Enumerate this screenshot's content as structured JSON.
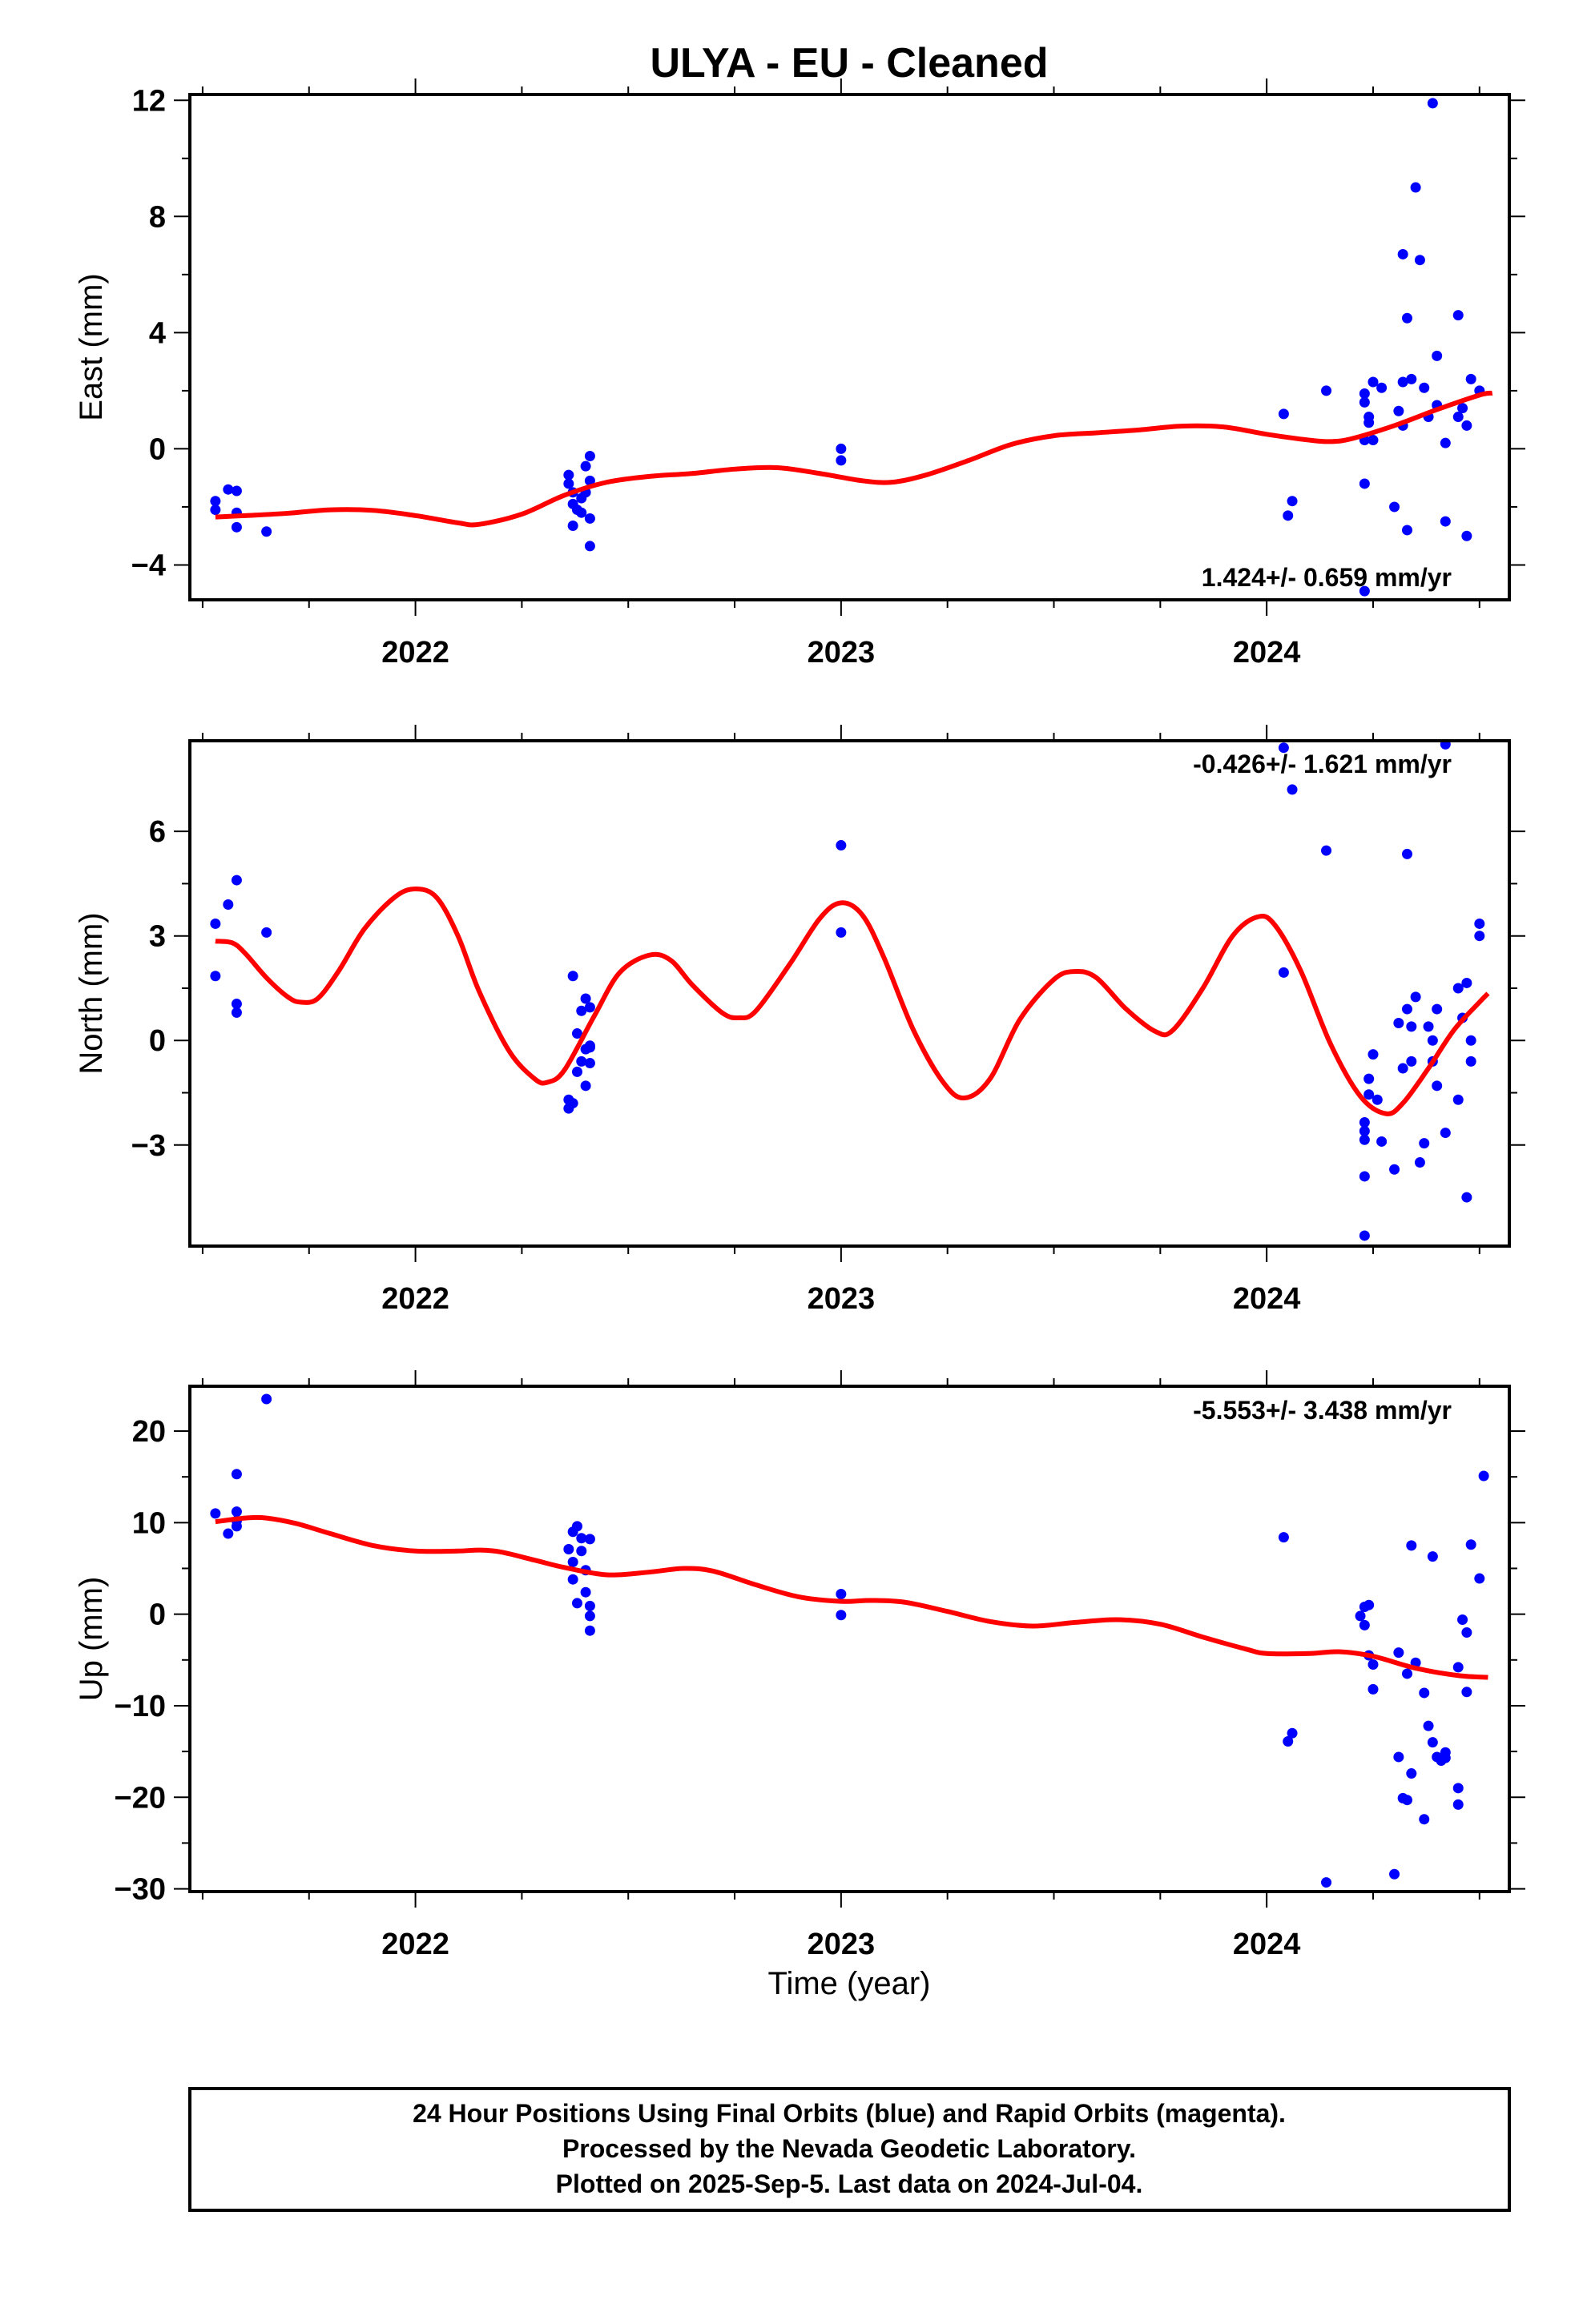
{
  "title": "ULYA  - EU - Cleaned",
  "xlabel": "Time (year)",
  "footer": [
    "24 Hour Positions Using Final Orbits (blue) and Rapid Orbits (magenta).",
    "Processed by the Nevada Geodetic Laboratory.",
    "Plotted on 2025-Sep-5. Last data on 2024-Jul-04."
  ],
  "colors": {
    "points": "#0000ff",
    "fit": "#ff0000",
    "frame": "#000000"
  },
  "chart_data": [
    {
      "type": "scatter",
      "id": "east",
      "ylabel": "East (mm)",
      "rate": "1.424+/- 0.659 mm/yr",
      "xlim": [
        2021.47,
        2024.57
      ],
      "ylim": [
        -5.2,
        12.2
      ],
      "yticks": [
        -4,
        0,
        4,
        8,
        12
      ],
      "yticklabels": [
        "−4",
        "0",
        "4",
        "8",
        "12"
      ],
      "xticks": [
        2022,
        2023,
        2024
      ],
      "xticklabels": [
        "2022",
        "2023",
        "2024"
      ],
      "points": [
        [
          2021.53,
          -1.8
        ],
        [
          2021.53,
          -2.1
        ],
        [
          2021.56,
          -1.4
        ],
        [
          2021.58,
          -1.45
        ],
        [
          2021.58,
          -2.2
        ],
        [
          2021.58,
          -2.7
        ],
        [
          2021.65,
          -2.85
        ],
        [
          2022.36,
          -0.9
        ],
        [
          2022.36,
          -1.2
        ],
        [
          2022.37,
          -1.5
        ],
        [
          2022.37,
          -1.9
        ],
        [
          2022.38,
          -2.1
        ],
        [
          2022.37,
          -2.65
        ],
        [
          2022.39,
          -1.7
        ],
        [
          2022.39,
          -2.2
        ],
        [
          2022.4,
          -0.6
        ],
        [
          2022.41,
          -0.25
        ],
        [
          2022.4,
          -1.5
        ],
        [
          2022.41,
          -1.1
        ],
        [
          2022.41,
          -2.4
        ],
        [
          2022.41,
          -3.35
        ],
        [
          2023.0,
          0.0
        ],
        [
          2023.0,
          -0.4
        ],
        [
          2024.04,
          1.2
        ],
        [
          2024.05,
          -2.3
        ],
        [
          2024.06,
          -1.8
        ],
        [
          2024.14,
          2.0
        ],
        [
          2024.23,
          1.9
        ],
        [
          2024.23,
          1.6
        ],
        [
          2024.23,
          0.3
        ],
        [
          2024.23,
          -1.2
        ],
        [
          2024.23,
          -4.9
        ],
        [
          2024.24,
          1.1
        ],
        [
          2024.24,
          0.9
        ],
        [
          2024.25,
          2.3
        ],
        [
          2024.25,
          0.3
        ],
        [
          2024.27,
          2.1
        ],
        [
          2024.3,
          -2.0
        ],
        [
          2024.31,
          1.3
        ],
        [
          2024.32,
          6.7
        ],
        [
          2024.32,
          2.3
        ],
        [
          2024.32,
          0.8
        ],
        [
          2024.33,
          -2.8
        ],
        [
          2024.33,
          4.5
        ],
        [
          2024.34,
          2.4
        ],
        [
          2024.35,
          9.0
        ],
        [
          2024.36,
          6.5
        ],
        [
          2024.37,
          2.1
        ],
        [
          2024.38,
          1.1
        ],
        [
          2024.39,
          11.9
        ],
        [
          2024.4,
          3.2
        ],
        [
          2024.4,
          1.5
        ],
        [
          2024.42,
          0.2
        ],
        [
          2024.42,
          -2.5
        ],
        [
          2024.45,
          4.6
        ],
        [
          2024.45,
          1.1
        ],
        [
          2024.46,
          1.4
        ],
        [
          2024.47,
          0.8
        ],
        [
          2024.47,
          -3.0
        ],
        [
          2024.48,
          2.4
        ],
        [
          2024.5,
          2.0
        ]
      ],
      "fit": [
        [
          2021.53,
          -2.35
        ],
        [
          2021.6,
          -2.3
        ],
        [
          2021.7,
          -2.22
        ],
        [
          2021.8,
          -2.1
        ],
        [
          2021.9,
          -2.12
        ],
        [
          2022.0,
          -2.3
        ],
        [
          2022.1,
          -2.55
        ],
        [
          2022.15,
          -2.6
        ],
        [
          2022.25,
          -2.25
        ],
        [
          2022.35,
          -1.6
        ],
        [
          2022.45,
          -1.15
        ],
        [
          2022.55,
          -0.95
        ],
        [
          2022.65,
          -0.85
        ],
        [
          2022.75,
          -0.7
        ],
        [
          2022.85,
          -0.65
        ],
        [
          2022.95,
          -0.85
        ],
        [
          2023.05,
          -1.1
        ],
        [
          2023.12,
          -1.15
        ],
        [
          2023.2,
          -0.9
        ],
        [
          2023.3,
          -0.4
        ],
        [
          2023.4,
          0.15
        ],
        [
          2023.5,
          0.45
        ],
        [
          2023.6,
          0.55
        ],
        [
          2023.7,
          0.65
        ],
        [
          2023.8,
          0.78
        ],
        [
          2023.9,
          0.75
        ],
        [
          2024.0,
          0.5
        ],
        [
          2024.1,
          0.3
        ],
        [
          2024.15,
          0.25
        ],
        [
          2024.2,
          0.35
        ],
        [
          2024.3,
          0.8
        ],
        [
          2024.4,
          1.35
        ],
        [
          2024.5,
          1.85
        ],
        [
          2024.53,
          1.92
        ]
      ]
    },
    {
      "type": "scatter",
      "id": "north",
      "ylabel": "North (mm)",
      "rate": "-0.426+/- 1.621 mm/yr",
      "xlim": [
        2021.47,
        2024.57
      ],
      "ylim": [
        -5.9,
        8.6
      ],
      "yticks": [
        -3,
        0,
        3,
        6
      ],
      "yticklabels": [
        "−3",
        "0",
        "3",
        "6"
      ],
      "xticks": [
        2022,
        2023,
        2024
      ],
      "xticklabels": [
        "2022",
        "2023",
        "2024"
      ],
      "points": [
        [
          2021.53,
          3.35
        ],
        [
          2021.53,
          1.85
        ],
        [
          2021.56,
          3.9
        ],
        [
          2021.58,
          4.6
        ],
        [
          2021.58,
          1.05
        ],
        [
          2021.58,
          0.8
        ],
        [
          2021.65,
          3.1
        ],
        [
          2022.36,
          -1.7
        ],
        [
          2022.36,
          -1.95
        ],
        [
          2022.37,
          -1.8
        ],
        [
          2022.37,
          1.85
        ],
        [
          2022.38,
          0.2
        ],
        [
          2022.38,
          -0.9
        ],
        [
          2022.39,
          0.85
        ],
        [
          2022.39,
          -0.6
        ],
        [
          2022.4,
          1.2
        ],
        [
          2022.4,
          -0.25
        ],
        [
          2022.4,
          -1.3
        ],
        [
          2022.41,
          0.95
        ],
        [
          2022.41,
          -0.2
        ],
        [
          2022.41,
          -0.65
        ],
        [
          2022.41,
          -0.15
        ],
        [
          2023.0,
          5.6
        ],
        [
          2023.0,
          3.1
        ],
        [
          2024.04,
          8.4
        ],
        [
          2024.04,
          1.95
        ],
        [
          2024.06,
          7.2
        ],
        [
          2024.14,
          5.45
        ],
        [
          2024.23,
          -2.35
        ],
        [
          2024.23,
          -2.6
        ],
        [
          2024.23,
          -2.85
        ],
        [
          2024.23,
          -3.9
        ],
        [
          2024.23,
          -5.6
        ],
        [
          2024.24,
          -1.55
        ],
        [
          2024.24,
          -1.1
        ],
        [
          2024.25,
          -0.4
        ],
        [
          2024.26,
          -1.7
        ],
        [
          2024.27,
          -2.9
        ],
        [
          2024.3,
          -3.7
        ],
        [
          2024.31,
          0.5
        ],
        [
          2024.32,
          -0.8
        ],
        [
          2024.33,
          0.9
        ],
        [
          2024.33,
          5.35
        ],
        [
          2024.34,
          -0.6
        ],
        [
          2024.34,
          0.4
        ],
        [
          2024.35,
          1.25
        ],
        [
          2024.36,
          -3.5
        ],
        [
          2024.37,
          -2.95
        ],
        [
          2024.38,
          0.4
        ],
        [
          2024.39,
          0.0
        ],
        [
          2024.39,
          -0.6
        ],
        [
          2024.4,
          -1.3
        ],
        [
          2024.4,
          0.9
        ],
        [
          2024.42,
          -2.65
        ],
        [
          2024.42,
          8.5
        ],
        [
          2024.45,
          1.5
        ],
        [
          2024.45,
          -1.7
        ],
        [
          2024.46,
          0.65
        ],
        [
          2024.47,
          1.65
        ],
        [
          2024.47,
          -4.5
        ],
        [
          2024.48,
          0.0
        ],
        [
          2024.48,
          -0.6
        ],
        [
          2024.5,
          3.0
        ],
        [
          2024.5,
          3.35
        ]
      ],
      "fit": [
        [
          2021.53,
          2.85
        ],
        [
          2021.57,
          2.8
        ],
        [
          2021.6,
          2.5
        ],
        [
          2021.65,
          1.8
        ],
        [
          2021.7,
          1.25
        ],
        [
          2021.73,
          1.1
        ],
        [
          2021.77,
          1.2
        ],
        [
          2021.82,
          2.0
        ],
        [
          2021.88,
          3.2
        ],
        [
          2021.95,
          4.1
        ],
        [
          2022.0,
          4.35
        ],
        [
          2022.05,
          4.1
        ],
        [
          2022.1,
          3.0
        ],
        [
          2022.15,
          1.4
        ],
        [
          2022.22,
          -0.3
        ],
        [
          2022.28,
          -1.1
        ],
        [
          2022.31,
          -1.2
        ],
        [
          2022.35,
          -0.85
        ],
        [
          2022.42,
          0.7
        ],
        [
          2022.48,
          1.95
        ],
        [
          2022.55,
          2.45
        ],
        [
          2022.6,
          2.3
        ],
        [
          2022.65,
          1.6
        ],
        [
          2022.72,
          0.8
        ],
        [
          2022.76,
          0.65
        ],
        [
          2022.8,
          0.85
        ],
        [
          2022.88,
          2.2
        ],
        [
          2022.95,
          3.5
        ],
        [
          2023.0,
          3.95
        ],
        [
          2023.05,
          3.6
        ],
        [
          2023.1,
          2.4
        ],
        [
          2023.17,
          0.3
        ],
        [
          2023.24,
          -1.2
        ],
        [
          2023.29,
          -1.65
        ],
        [
          2023.35,
          -1.1
        ],
        [
          2023.42,
          0.6
        ],
        [
          2023.5,
          1.75
        ],
        [
          2023.55,
          1.98
        ],
        [
          2023.6,
          1.8
        ],
        [
          2023.67,
          0.9
        ],
        [
          2023.74,
          0.25
        ],
        [
          2023.78,
          0.3
        ],
        [
          2023.85,
          1.5
        ],
        [
          2023.92,
          3.0
        ],
        [
          2023.98,
          3.55
        ],
        [
          2024.02,
          3.3
        ],
        [
          2024.08,
          2.0
        ],
        [
          2024.15,
          -0.1
        ],
        [
          2024.22,
          -1.6
        ],
        [
          2024.28,
          -2.1
        ],
        [
          2024.32,
          -1.8
        ],
        [
          2024.38,
          -0.8
        ],
        [
          2024.44,
          0.3
        ],
        [
          2024.5,
          1.1
        ],
        [
          2024.52,
          1.35
        ]
      ]
    },
    {
      "type": "scatter",
      "id": "up",
      "ylabel": "Up (mm)",
      "rate": "-5.553+/- 3.438 mm/yr",
      "xlim": [
        2021.47,
        2024.57
      ],
      "ylim": [
        -30.3,
        24.9
      ],
      "yticks": [
        -30,
        -20,
        -10,
        0,
        10,
        20
      ],
      "yticklabels": [
        "−30",
        "−20",
        "−10",
        "0",
        "10",
        "20"
      ],
      "xticks": [
        2022,
        2023,
        2024
      ],
      "xticklabels": [
        "2022",
        "2023",
        "2024"
      ],
      "points": [
        [
          2021.53,
          11.0
        ],
        [
          2021.56,
          8.8
        ],
        [
          2021.58,
          15.3
        ],
        [
          2021.58,
          11.2
        ],
        [
          2021.58,
          10.2
        ],
        [
          2021.58,
          9.6
        ],
        [
          2021.65,
          23.5
        ],
        [
          2022.36,
          7.1
        ],
        [
          2022.37,
          9.0
        ],
        [
          2022.37,
          5.7
        ],
        [
          2022.37,
          3.8
        ],
        [
          2022.38,
          9.6
        ],
        [
          2022.38,
          1.2
        ],
        [
          2022.39,
          8.3
        ],
        [
          2022.39,
          6.9
        ],
        [
          2022.4,
          4.8
        ],
        [
          2022.4,
          2.4
        ],
        [
          2022.41,
          8.2
        ],
        [
          2022.41,
          0.9
        ],
        [
          2022.41,
          -0.2
        ],
        [
          2022.41,
          -1.8
        ],
        [
          2023.0,
          2.2
        ],
        [
          2023.0,
          -0.1
        ],
        [
          2024.04,
          8.4
        ],
        [
          2024.05,
          -13.9
        ],
        [
          2024.06,
          -13.0
        ],
        [
          2024.14,
          -29.3
        ],
        [
          2024.22,
          -0.2
        ],
        [
          2024.23,
          0.8
        ],
        [
          2024.23,
          -1.2
        ],
        [
          2024.24,
          1.0
        ],
        [
          2024.24,
          -4.5
        ],
        [
          2024.25,
          -5.5
        ],
        [
          2024.25,
          -8.2
        ],
        [
          2024.3,
          -28.4
        ],
        [
          2024.31,
          -4.2
        ],
        [
          2024.31,
          -15.6
        ],
        [
          2024.32,
          -20.1
        ],
        [
          2024.33,
          -20.3
        ],
        [
          2024.33,
          -6.5
        ],
        [
          2024.34,
          -17.4
        ],
        [
          2024.34,
          7.5
        ],
        [
          2024.35,
          -5.3
        ],
        [
          2024.37,
          -22.4
        ],
        [
          2024.37,
          -8.6
        ],
        [
          2024.38,
          -12.2
        ],
        [
          2024.39,
          6.3
        ],
        [
          2024.39,
          -14.0
        ],
        [
          2024.4,
          -15.6
        ],
        [
          2024.41,
          -16.0
        ],
        [
          2024.42,
          -15.7
        ],
        [
          2024.42,
          -15.1
        ],
        [
          2024.45,
          -19.0
        ],
        [
          2024.45,
          -20.8
        ],
        [
          2024.45,
          -5.8
        ],
        [
          2024.46,
          -0.6
        ],
        [
          2024.47,
          -2.0
        ],
        [
          2024.47,
          -8.5
        ],
        [
          2024.48,
          7.6
        ],
        [
          2024.5,
          3.9
        ],
        [
          2024.51,
          15.1
        ]
      ],
      "fit": [
        [
          2021.53,
          10.1
        ],
        [
          2021.6,
          10.5
        ],
        [
          2021.65,
          10.5
        ],
        [
          2021.72,
          9.9
        ],
        [
          2021.8,
          8.8
        ],
        [
          2021.9,
          7.5
        ],
        [
          2022.0,
          6.9
        ],
        [
          2022.1,
          6.9
        ],
        [
          2022.15,
          7.0
        ],
        [
          2022.2,
          6.8
        ],
        [
          2022.28,
          5.9
        ],
        [
          2022.35,
          5.1
        ],
        [
          2022.45,
          4.3
        ],
        [
          2022.55,
          4.6
        ],
        [
          2022.63,
          5.0
        ],
        [
          2022.7,
          4.7
        ],
        [
          2022.8,
          3.2
        ],
        [
          2022.9,
          1.9
        ],
        [
          2023.0,
          1.4
        ],
        [
          2023.07,
          1.5
        ],
        [
          2023.15,
          1.3
        ],
        [
          2023.25,
          0.3
        ],
        [
          2023.35,
          -0.8
        ],
        [
          2023.45,
          -1.3
        ],
        [
          2023.55,
          -0.9
        ],
        [
          2023.65,
          -0.6
        ],
        [
          2023.75,
          -1.1
        ],
        [
          2023.85,
          -2.5
        ],
        [
          2023.95,
          -3.8
        ],
        [
          2024.0,
          -4.3
        ],
        [
          2024.1,
          -4.3
        ],
        [
          2024.17,
          -4.1
        ],
        [
          2024.25,
          -4.6
        ],
        [
          2024.35,
          -5.9
        ],
        [
          2024.45,
          -6.7
        ],
        [
          2024.52,
          -6.9
        ]
      ]
    }
  ]
}
